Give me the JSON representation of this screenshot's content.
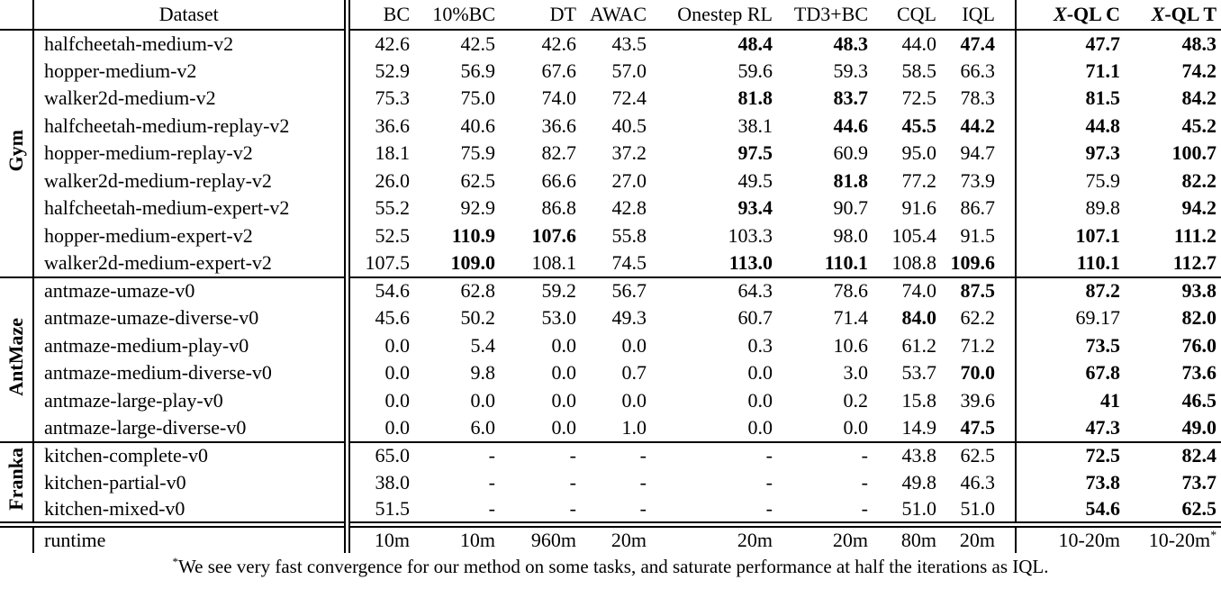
{
  "table": {
    "header": {
      "dataset_label": "Dataset",
      "methods": [
        "BC",
        "10%BC",
        "DT",
        "AWAC",
        "Onestep RL",
        "TD3+BC",
        "CQL",
        "IQL"
      ],
      "xql_columns": [
        {
          "script": "X",
          "rest": "-QL C"
        },
        {
          "script": "X",
          "rest": "-QL T"
        }
      ]
    },
    "groups": [
      {
        "label": "Gym",
        "rows": [
          {
            "dataset": "halfcheetah-medium-v2",
            "values": [
              "42.6",
              "42.5",
              "42.6",
              "43.5",
              "48.4",
              "48.3",
              "44.0",
              "47.4",
              "47.7",
              "48.3"
            ],
            "bold": [
              0,
              0,
              0,
              0,
              1,
              1,
              0,
              1,
              1,
              1
            ]
          },
          {
            "dataset": "hopper-medium-v2",
            "values": [
              "52.9",
              "56.9",
              "67.6",
              "57.0",
              "59.6",
              "59.3",
              "58.5",
              "66.3",
              "71.1",
              "74.2"
            ],
            "bold": [
              0,
              0,
              0,
              0,
              0,
              0,
              0,
              0,
              1,
              1
            ]
          },
          {
            "dataset": "walker2d-medium-v2",
            "values": [
              "75.3",
              "75.0",
              "74.0",
              "72.4",
              "81.8",
              "83.7",
              "72.5",
              "78.3",
              "81.5",
              "84.2"
            ],
            "bold": [
              0,
              0,
              0,
              0,
              1,
              1,
              0,
              0,
              1,
              1
            ]
          },
          {
            "dataset": "halfcheetah-medium-replay-v2",
            "values": [
              "36.6",
              "40.6",
              "36.6",
              "40.5",
              "38.1",
              "44.6",
              "45.5",
              "44.2",
              "44.8",
              "45.2"
            ],
            "bold": [
              0,
              0,
              0,
              0,
              0,
              1,
              1,
              1,
              1,
              1
            ]
          },
          {
            "dataset": "hopper-medium-replay-v2",
            "values": [
              "18.1",
              "75.9",
              "82.7",
              "37.2",
              "97.5",
              "60.9",
              "95.0",
              "94.7",
              "97.3",
              "100.7"
            ],
            "bold": [
              0,
              0,
              0,
              0,
              1,
              0,
              0,
              0,
              1,
              1
            ]
          },
          {
            "dataset": "walker2d-medium-replay-v2",
            "values": [
              "26.0",
              "62.5",
              "66.6",
              "27.0",
              "49.5",
              "81.8",
              "77.2",
              "73.9",
              "75.9",
              "82.2"
            ],
            "bold": [
              0,
              0,
              0,
              0,
              0,
              1,
              0,
              0,
              0,
              1
            ]
          },
          {
            "dataset": "halfcheetah-medium-expert-v2",
            "values": [
              "55.2",
              "92.9",
              "86.8",
              "42.8",
              "93.4",
              "90.7",
              "91.6",
              "86.7",
              "89.8",
              "94.2"
            ],
            "bold": [
              0,
              0,
              0,
              0,
              1,
              0,
              0,
              0,
              0,
              1
            ]
          },
          {
            "dataset": "hopper-medium-expert-v2",
            "values": [
              "52.5",
              "110.9",
              "107.6",
              "55.8",
              "103.3",
              "98.0",
              "105.4",
              "91.5",
              "107.1",
              "111.2"
            ],
            "bold": [
              0,
              1,
              1,
              0,
              0,
              0,
              0,
              0,
              1,
              1
            ]
          },
          {
            "dataset": "walker2d-medium-expert-v2",
            "values": [
              "107.5",
              "109.0",
              "108.1",
              "74.5",
              "113.0",
              "110.1",
              "108.8",
              "109.6",
              "110.1",
              "112.7"
            ],
            "bold": [
              0,
              1,
              0,
              0,
              1,
              1,
              0,
              1,
              1,
              1
            ]
          }
        ]
      },
      {
        "label": "AntMaze",
        "rows": [
          {
            "dataset": "antmaze-umaze-v0",
            "values": [
              "54.6",
              "62.8",
              "59.2",
              "56.7",
              "64.3",
              "78.6",
              "74.0",
              "87.5",
              "87.2",
              "93.8"
            ],
            "bold": [
              0,
              0,
              0,
              0,
              0,
              0,
              0,
              1,
              1,
              1
            ]
          },
          {
            "dataset": "antmaze-umaze-diverse-v0",
            "values": [
              "45.6",
              "50.2",
              "53.0",
              "49.3",
              "60.7",
              "71.4",
              "84.0",
              "62.2",
              "69.17",
              "82.0"
            ],
            "bold": [
              0,
              0,
              0,
              0,
              0,
              0,
              1,
              0,
              0,
              1
            ]
          },
          {
            "dataset": "antmaze-medium-play-v0",
            "values": [
              "0.0",
              "5.4",
              "0.0",
              "0.0",
              "0.3",
              "10.6",
              "61.2",
              "71.2",
              "73.5",
              "76.0"
            ],
            "bold": [
              0,
              0,
              0,
              0,
              0,
              0,
              0,
              0,
              1,
              1
            ]
          },
          {
            "dataset": "antmaze-medium-diverse-v0",
            "values": [
              "0.0",
              "9.8",
              "0.0",
              "0.7",
              "0.0",
              "3.0",
              "53.7",
              "70.0",
              "67.8",
              "73.6"
            ],
            "bold": [
              0,
              0,
              0,
              0,
              0,
              0,
              0,
              1,
              1,
              1
            ]
          },
          {
            "dataset": "antmaze-large-play-v0",
            "values": [
              "0.0",
              "0.0",
              "0.0",
              "0.0",
              "0.0",
              "0.2",
              "15.8",
              "39.6",
              "41",
              "46.5"
            ],
            "bold": [
              0,
              0,
              0,
              0,
              0,
              0,
              0,
              0,
              1,
              1
            ]
          },
          {
            "dataset": "antmaze-large-diverse-v0",
            "values": [
              "0.0",
              "6.0",
              "0.0",
              "1.0",
              "0.0",
              "0.0",
              "14.9",
              "47.5",
              "47.3",
              "49.0"
            ],
            "bold": [
              0,
              0,
              0,
              0,
              0,
              0,
              0,
              1,
              1,
              1
            ]
          }
        ]
      },
      {
        "label": "Franka",
        "rows": [
          {
            "dataset": "kitchen-complete-v0",
            "values": [
              "65.0",
              "-",
              "-",
              "-",
              "-",
              "-",
              "43.8",
              "62.5",
              "72.5",
              "82.4"
            ],
            "bold": [
              0,
              0,
              0,
              0,
              0,
              0,
              0,
              0,
              1,
              1
            ]
          },
          {
            "dataset": "kitchen-partial-v0",
            "values": [
              "38.0",
              "-",
              "-",
              "-",
              "-",
              "-",
              "49.8",
              "46.3",
              "73.8",
              "73.7"
            ],
            "bold": [
              0,
              0,
              0,
              0,
              0,
              0,
              0,
              0,
              1,
              1
            ]
          },
          {
            "dataset": "kitchen-mixed-v0",
            "values": [
              "51.5",
              "-",
              "-",
              "-",
              "-",
              "-",
              "51.0",
              "51.0",
              "54.6",
              "62.5"
            ],
            "bold": [
              0,
              0,
              0,
              0,
              0,
              0,
              0,
              0,
              1,
              1
            ]
          }
        ]
      }
    ],
    "runtime": {
      "label": "runtime",
      "values": [
        "10m",
        "10m",
        "960m",
        "20m",
        "20m",
        "20m",
        "80m",
        "20m",
        "10-20m",
        "10-20m"
      ],
      "last_superscript": "*"
    },
    "footnote": {
      "superscript": "*",
      "text": "We see very fast convergence for our method on some tasks, and saturate performance at half the iterations as IQL."
    }
  },
  "colors": {
    "text": "#000000",
    "background": "#ffffff",
    "rules": "#000000"
  }
}
